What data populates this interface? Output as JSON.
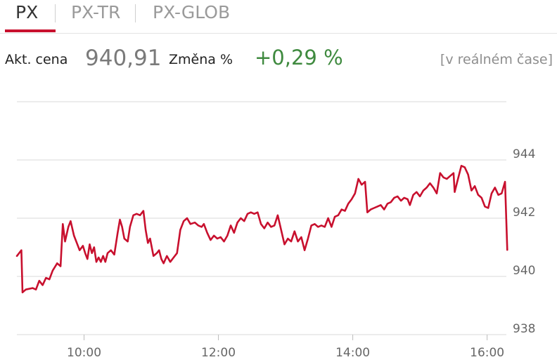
{
  "tabs": [
    {
      "label": "PX",
      "active": true
    },
    {
      "label": "PX-TR",
      "active": false
    },
    {
      "label": "PX-GLOB",
      "active": false
    }
  ],
  "quote": {
    "price_label": "Akt. cena",
    "price": "940,91",
    "change_label": "Změna %",
    "change": "+0,29 %",
    "realtime": "[v reálném čase]"
  },
  "colors": {
    "accent": "#c8102e",
    "positive": "#3f8a3f",
    "grid": "#d9d9d9",
    "axis_text": "#666666"
  },
  "chart_data": {
    "type": "line",
    "x_axis": {
      "tick_labels": [
        "10:00",
        "12:00",
        "14:00",
        "16:00"
      ],
      "range": [
        "09:00",
        "16:20"
      ]
    },
    "y_axis": {
      "tick_values": [
        938,
        940,
        942,
        944
      ],
      "tick_labels": [
        "938",
        "940",
        "942",
        "944"
      ],
      "range": [
        938,
        946
      ],
      "position": "right"
    },
    "grid": true,
    "series": [
      {
        "color": "#c8102e",
        "points": [
          [
            "09:00",
            940.7
          ],
          [
            "09:04",
            940.9
          ],
          [
            "09:05",
            939.45
          ],
          [
            "09:08",
            939.55
          ],
          [
            "09:14",
            939.6
          ],
          [
            "09:17",
            939.55
          ],
          [
            "09:20",
            939.85
          ],
          [
            "09:23",
            939.7
          ],
          [
            "09:26",
            939.95
          ],
          [
            "09:29",
            939.9
          ],
          [
            "09:32",
            940.2
          ],
          [
            "09:36",
            940.45
          ],
          [
            "09:39",
            940.35
          ],
          [
            "09:41",
            941.8
          ],
          [
            "09:43",
            941.2
          ],
          [
            "09:46",
            941.7
          ],
          [
            "09:48",
            941.9
          ],
          [
            "09:51",
            941.4
          ],
          [
            "09:54",
            941.1
          ],
          [
            "09:56",
            940.9
          ],
          [
            "09:59",
            941.05
          ],
          [
            "10:01",
            940.8
          ],
          [
            "10:03",
            940.6
          ],
          [
            "10:05",
            941.1
          ],
          [
            "10:07",
            940.8
          ],
          [
            "10:09",
            941.0
          ],
          [
            "10:11",
            940.5
          ],
          [
            "10:13",
            940.65
          ],
          [
            "10:15",
            940.5
          ],
          [
            "10:17",
            940.7
          ],
          [
            "10:19",
            940.5
          ],
          [
            "10:21",
            940.8
          ],
          [
            "10:24",
            940.9
          ],
          [
            "10:27",
            940.75
          ],
          [
            "10:30",
            941.5
          ],
          [
            "10:32",
            941.95
          ],
          [
            "10:34",
            941.7
          ],
          [
            "10:36",
            941.3
          ],
          [
            "10:39",
            941.2
          ],
          [
            "10:41",
            941.7
          ],
          [
            "10:44",
            942.1
          ],
          [
            "10:47",
            942.15
          ],
          [
            "10:50",
            942.1
          ],
          [
            "10:53",
            942.25
          ],
          [
            "10:55",
            941.6
          ],
          [
            "10:57",
            941.15
          ],
          [
            "10:59",
            941.3
          ],
          [
            "11:02",
            940.7
          ],
          [
            "11:05",
            940.8
          ],
          [
            "11:07",
            940.9
          ],
          [
            "11:09",
            940.6
          ],
          [
            "11:11",
            940.45
          ],
          [
            "11:14",
            940.7
          ],
          [
            "11:17",
            940.5
          ],
          [
            "11:20",
            940.65
          ],
          [
            "11:23",
            940.8
          ],
          [
            "11:26",
            941.6
          ],
          [
            "11:29",
            941.9
          ],
          [
            "11:32",
            942.0
          ],
          [
            "11:35",
            941.8
          ],
          [
            "11:39",
            941.85
          ],
          [
            "11:42",
            941.75
          ],
          [
            "11:45",
            941.7
          ],
          [
            "11:47",
            941.8
          ],
          [
            "11:50",
            941.5
          ],
          [
            "11:53",
            941.25
          ],
          [
            "11:56",
            941.4
          ],
          [
            "11:59",
            941.3
          ],
          [
            "12:02",
            941.35
          ],
          [
            "12:05",
            941.2
          ],
          [
            "12:08",
            941.4
          ],
          [
            "12:11",
            941.75
          ],
          [
            "12:14",
            941.5
          ],
          [
            "12:17",
            941.85
          ],
          [
            "12:20",
            942.0
          ],
          [
            "12:23",
            941.9
          ],
          [
            "12:26",
            942.15
          ],
          [
            "12:29",
            942.2
          ],
          [
            "12:32",
            942.15
          ],
          [
            "12:35",
            942.2
          ],
          [
            "12:38",
            941.8
          ],
          [
            "12:41",
            941.65
          ],
          [
            "12:44",
            941.85
          ],
          [
            "12:47",
            941.7
          ],
          [
            "12:50",
            941.75
          ],
          [
            "12:53",
            942.1
          ],
          [
            "12:56",
            941.6
          ],
          [
            "12:59",
            941.1
          ],
          [
            "13:02",
            941.3
          ],
          [
            "13:05",
            941.2
          ],
          [
            "13:08",
            941.55
          ],
          [
            "13:11",
            941.2
          ],
          [
            "13:14",
            941.35
          ],
          [
            "13:17",
            940.9
          ],
          [
            "13:20",
            941.3
          ],
          [
            "13:23",
            941.75
          ],
          [
            "13:26",
            941.8
          ],
          [
            "13:29",
            941.7
          ],
          [
            "13:32",
            941.75
          ],
          [
            "13:35",
            941.7
          ],
          [
            "13:38",
            942.0
          ],
          [
            "13:41",
            941.7
          ],
          [
            "13:44",
            942.05
          ],
          [
            "13:47",
            942.1
          ],
          [
            "13:50",
            942.3
          ],
          [
            "13:53",
            942.25
          ],
          [
            "13:56",
            942.5
          ],
          [
            "13:59",
            942.65
          ],
          [
            "14:02",
            942.85
          ],
          [
            "14:05",
            943.35
          ],
          [
            "14:08",
            943.15
          ],
          [
            "14:11",
            943.25
          ],
          [
            "14:13",
            942.2
          ],
          [
            "14:16",
            942.3
          ],
          [
            "14:19",
            942.35
          ],
          [
            "14:22",
            942.4
          ],
          [
            "14:25",
            942.45
          ],
          [
            "14:28",
            942.3
          ],
          [
            "14:31",
            942.5
          ],
          [
            "14:34",
            942.55
          ],
          [
            "14:37",
            942.7
          ],
          [
            "14:40",
            942.75
          ],
          [
            "14:43",
            942.6
          ],
          [
            "14:46",
            942.7
          ],
          [
            "14:49",
            942.65
          ],
          [
            "14:51",
            942.45
          ],
          [
            "14:54",
            942.8
          ],
          [
            "14:57",
            942.9
          ],
          [
            "15:00",
            942.75
          ],
          [
            "15:03",
            942.95
          ],
          [
            "15:06",
            943.05
          ],
          [
            "15:09",
            943.2
          ],
          [
            "15:12",
            943.05
          ],
          [
            "15:15",
            942.85
          ],
          [
            "15:18",
            943.55
          ],
          [
            "15:21",
            943.4
          ],
          [
            "15:24",
            943.35
          ],
          [
            "15:27",
            943.45
          ],
          [
            "15:30",
            943.55
          ],
          [
            "15:31",
            942.9
          ],
          [
            "15:34",
            943.35
          ],
          [
            "15:37",
            943.8
          ],
          [
            "15:40",
            943.75
          ],
          [
            "15:43",
            943.5
          ],
          [
            "15:46",
            942.95
          ],
          [
            "15:49",
            943.1
          ],
          [
            "15:52",
            942.8
          ],
          [
            "15:55",
            942.7
          ],
          [
            "15:58",
            942.4
          ],
          [
            "16:01",
            942.35
          ],
          [
            "16:04",
            942.85
          ],
          [
            "16:07",
            943.05
          ],
          [
            "16:10",
            942.8
          ],
          [
            "16:13",
            942.85
          ],
          [
            "16:16",
            943.25
          ],
          [
            "16:18",
            940.91
          ]
        ]
      }
    ]
  }
}
